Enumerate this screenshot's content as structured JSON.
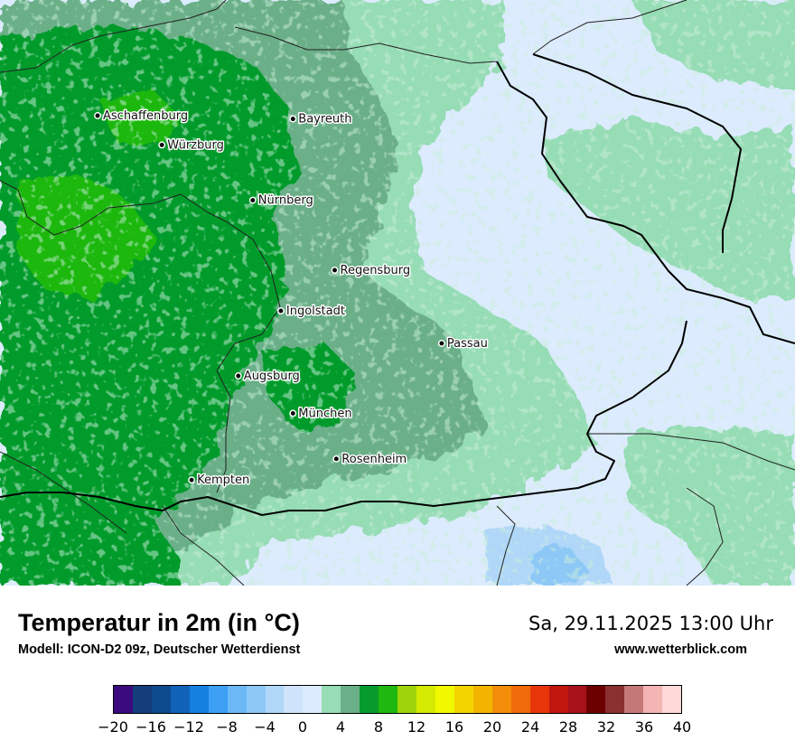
{
  "map": {
    "cities": [
      {
        "name": "Aschaffenburg",
        "lat": 49.97,
        "lon": 9.15
      },
      {
        "name": "Würzburg",
        "lat": 49.79,
        "lon": 9.95
      },
      {
        "name": "Bayreuth",
        "lat": 49.95,
        "lon": 11.58
      },
      {
        "name": "Nürnberg",
        "lat": 49.45,
        "lon": 11.08
      },
      {
        "name": "Regensburg",
        "lat": 49.02,
        "lon": 12.1
      },
      {
        "name": "Ingolstadt",
        "lat": 48.77,
        "lon": 11.43
      },
      {
        "name": "Passau",
        "lat": 48.57,
        "lon": 13.43
      },
      {
        "name": "Augsburg",
        "lat": 48.37,
        "lon": 10.9
      },
      {
        "name": "München",
        "lat": 48.14,
        "lon": 11.58
      },
      {
        "name": "Rosenheim",
        "lat": 47.86,
        "lon": 12.12
      },
      {
        "name": "Kempten",
        "lat": 47.73,
        "lon": 10.32
      }
    ]
  },
  "header": {
    "title": "Temperatur in 2m (in °C)",
    "model": "Modell: ICON-D2 09z, Deutscher Wetterdienst",
    "datetime": "Sa, 29.11.2025 13:00 Uhr",
    "website": "www.wetterblick.com"
  },
  "legend": {
    "ticks": [
      "−20",
      "−16",
      "−12",
      "−8",
      "−4",
      "0",
      "4",
      "8",
      "12",
      "16",
      "20",
      "24",
      "28",
      "32",
      "36",
      "40"
    ],
    "colors": [
      "#3b0a7e",
      "#143d7a",
      "#0d4a8c",
      "#1062b8",
      "#1580e0",
      "#3da0f5",
      "#6cb8f5",
      "#8ec8f7",
      "#b0d7f8",
      "#cfe4fb",
      "#dcebfd",
      "#96dcb5",
      "#6aaf88",
      "#069b2c",
      "#1fb811",
      "#9fd40a",
      "#d4ea00",
      "#f2f800",
      "#f4d400",
      "#f3b400",
      "#f38d0a",
      "#f06a0a",
      "#e8360a",
      "#c0180f",
      "#a8121a",
      "#6c0000",
      "#8b3030",
      "#c47878",
      "#f4b4b4",
      "#ffd8d8"
    ]
  }
}
